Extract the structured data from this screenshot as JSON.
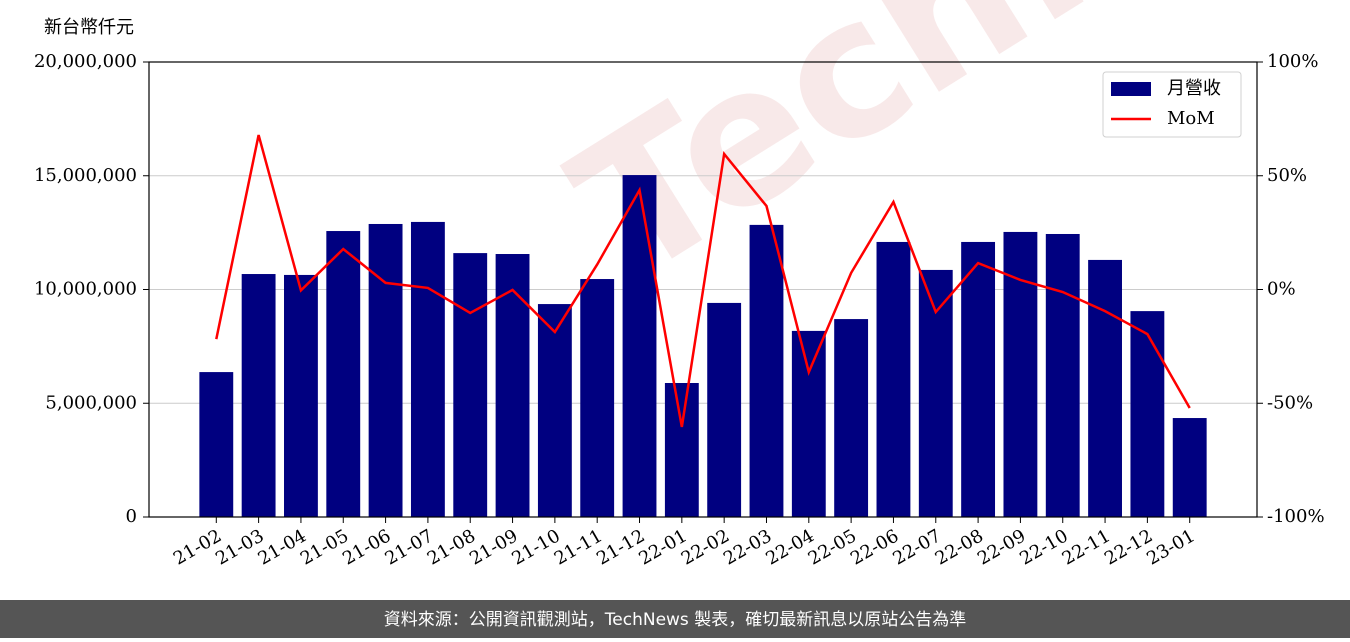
{
  "chart_data": {
    "type": "bar",
    "y_label": "新台幣仟元",
    "categories": [
      "21-02",
      "21-03",
      "21-04",
      "21-05",
      "21-06",
      "21-07",
      "21-08",
      "21-09",
      "21-10",
      "21-11",
      "21-12",
      "22-01",
      "22-02",
      "22-03",
      "22-04",
      "22-05",
      "22-06",
      "22-07",
      "22-08",
      "22-09",
      "22-10",
      "22-11",
      "22-12",
      "23-01"
    ],
    "series": [
      {
        "name": "月營收",
        "type": "bar",
        "color": "#000080",
        "values": [
          6370000,
          10680000,
          10640000,
          12570000,
          12880000,
          12970000,
          11600000,
          11560000,
          9360000,
          10460000,
          15030000,
          5890000,
          9410000,
          12840000,
          8180000,
          8700000,
          12090000,
          10860000,
          12090000,
          12530000,
          12440000,
          11300000,
          9050000,
          4350000
        ]
      },
      {
        "name": "MoM",
        "type": "line",
        "color": "#ff0000",
        "axis": "y2",
        "values": [
          -21.8,
          67.9,
          -0.4,
          17.8,
          2.9,
          0.7,
          -10.3,
          -0.2,
          -18.7,
          11,
          43.7,
          -60.4,
          59.6,
          36.7,
          -36.3,
          7.3,
          38.5,
          -9.9,
          11.6,
          4.2,
          -1.1,
          -9.5,
          -19.6,
          -52.1
        ]
      }
    ],
    "ylim": [
      0,
      20000000
    ],
    "yticks": [
      0,
      {
        "value": 5000000,
        "label": "5,000,000"
      },
      {
        "value": 10000000,
        "label": "10,000,000"
      },
      {
        "value": 15000000,
        "label": "15,000,000"
      },
      {
        "value": 20000000,
        "label": "20,000,000"
      }
    ],
    "y2lim": [
      -100,
      100
    ],
    "y2ticks": [
      {
        "value": -100,
        "label": "-100%"
      },
      {
        "value": -50,
        "label": "-50%"
      },
      {
        "value": 0,
        "label": "0%"
      },
      {
        "value": 50,
        "label": "50%"
      },
      {
        "value": 100,
        "label": "100%"
      }
    ],
    "grid": true,
    "legend": "upper right",
    "watermark": "TechNews",
    "footer": "資料來源：公開資訊觀測站，TechNews 製表，確切最新訊息以原站公告為準"
  }
}
